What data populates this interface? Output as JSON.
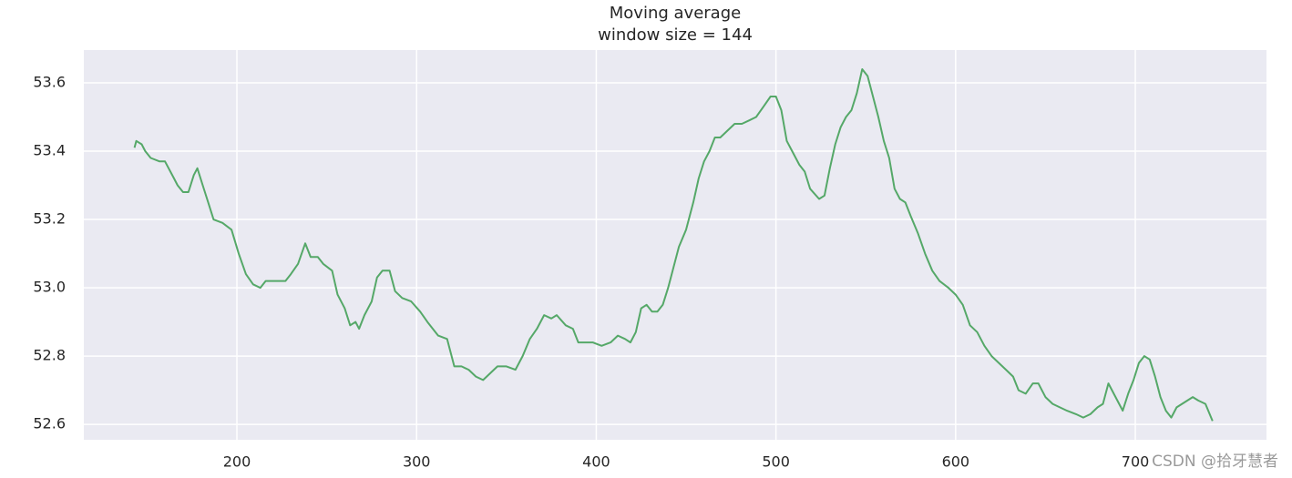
{
  "chart_data": {
    "type": "line",
    "title": "Moving average",
    "subtitle": "window size = 144",
    "watermark": "CSDN @拾牙慧者",
    "color": "#55a868",
    "background": "#eaeaf2",
    "grid": true,
    "xlim": [
      114.8,
      773
    ],
    "ylim": [
      52.555,
      53.696
    ],
    "xticks": [
      200,
      300,
      400,
      500,
      600,
      700
    ],
    "yticks": [
      52.6,
      52.8,
      {
        "value": 53,
        "label": "53.0"
      },
      53.2,
      53.4,
      53.6
    ],
    "x": [
      143,
      144,
      147,
      149,
      152,
      157,
      160,
      165,
      167,
      170,
      173,
      176,
      178,
      181,
      184,
      187,
      192,
      197,
      201,
      205,
      209,
      213,
      216,
      220,
      227,
      230,
      234,
      238,
      241,
      245,
      248,
      253,
      256,
      260,
      263,
      266,
      268,
      271,
      275,
      278,
      281,
      285,
      288,
      292,
      297,
      302,
      306,
      312,
      317,
      321,
      325,
      329,
      333,
      337,
      341,
      345,
      350,
      355,
      359,
      363,
      367,
      371,
      375,
      378,
      383,
      387,
      390,
      394,
      398,
      403,
      408,
      412,
      416,
      419,
      422,
      425,
      428,
      431,
      434,
      437,
      440,
      443,
      446,
      450,
      454,
      457,
      460,
      463,
      466,
      469,
      473,
      477,
      481,
      485,
      489,
      493,
      497,
      500,
      503,
      506,
      509,
      513,
      516,
      519,
      524,
      527,
      530,
      533,
      536,
      539,
      542,
      545,
      548,
      551,
      554,
      557,
      560,
      563,
      566,
      569,
      572,
      575,
      579,
      583,
      587,
      591,
      596,
      600,
      604,
      608,
      612,
      616,
      620,
      624,
      628,
      632,
      635,
      639,
      643,
      646,
      650,
      654,
      658,
      662,
      667,
      671,
      675,
      679,
      682,
      685,
      688,
      691,
      693,
      696,
      699,
      702,
      705,
      708,
      711,
      714,
      717,
      720,
      723,
      726,
      729,
      732,
      735,
      739,
      743
    ],
    "values": [
      53.41,
      53.43,
      53.42,
      53.4,
      53.38,
      53.37,
      53.37,
      53.32,
      53.3,
      53.28,
      53.28,
      53.33,
      53.35,
      53.3,
      53.25,
      53.2,
      53.19,
      53.17,
      53.1,
      53.04,
      53.01,
      53.0,
      53.02,
      53.02,
      53.02,
      53.04,
      53.07,
      53.13,
      53.09,
      53.09,
      53.07,
      53.05,
      52.98,
      52.94,
      52.89,
      52.9,
      52.88,
      52.92,
      52.96,
      53.03,
      53.05,
      53.05,
      52.99,
      52.97,
      52.96,
      52.93,
      52.9,
      52.86,
      52.85,
      52.77,
      52.77,
      52.76,
      52.74,
      52.73,
      52.75,
      52.77,
      52.77,
      52.76,
      52.8,
      52.85,
      52.88,
      52.92,
      52.91,
      52.92,
      52.89,
      52.88,
      52.84,
      52.84,
      52.84,
      52.83,
      52.84,
      52.86,
      52.85,
      52.84,
      52.87,
      52.94,
      52.95,
      52.93,
      52.93,
      52.95,
      53.0,
      53.06,
      53.12,
      53.17,
      53.25,
      53.32,
      53.37,
      53.4,
      53.44,
      53.44,
      53.46,
      53.48,
      53.48,
      53.49,
      53.5,
      53.53,
      53.56,
      53.56,
      53.52,
      53.43,
      53.4,
      53.36,
      53.34,
      53.29,
      53.26,
      53.27,
      53.35,
      53.42,
      53.47,
      53.5,
      53.52,
      53.57,
      53.64,
      53.62,
      53.56,
      53.5,
      53.43,
      53.38,
      53.29,
      53.26,
      53.25,
      53.21,
      53.16,
      53.1,
      53.05,
      53.02,
      53.0,
      52.98,
      52.95,
      52.89,
      52.87,
      52.83,
      52.8,
      52.78,
      52.76,
      52.74,
      52.7,
      52.69,
      52.72,
      52.72,
      52.68,
      52.66,
      52.65,
      52.64,
      52.63,
      52.62,
      52.63,
      52.65,
      52.66,
      52.72,
      52.69,
      52.66,
      52.64,
      52.69,
      52.73,
      52.78,
      52.8,
      52.79,
      52.74,
      52.68,
      52.64,
      52.62,
      52.65,
      52.66,
      52.67,
      52.68,
      52.67,
      52.66,
      52.61
    ]
  }
}
